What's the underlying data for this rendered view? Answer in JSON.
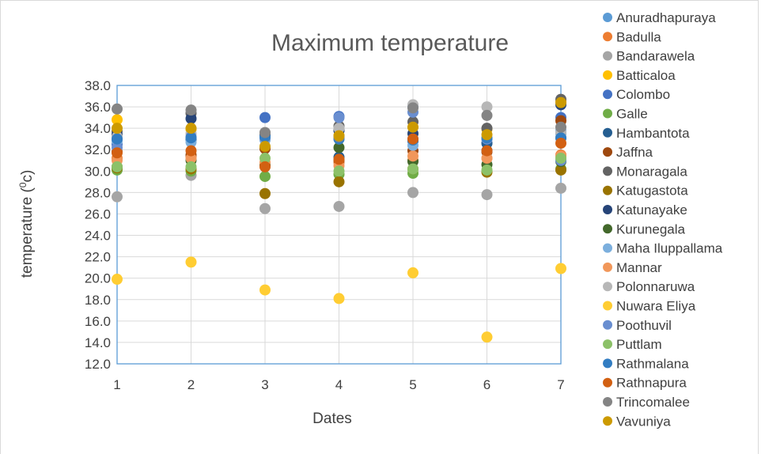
{
  "chart_data": {
    "type": "scatter",
    "title": "Maximum  temperature",
    "xlabel": "Dates",
    "ylabel_main": "temperature (",
    "ylabel_sup": "0",
    "ylabel_end": "c)",
    "xlim": [
      1,
      7
    ],
    "ylim": [
      12.0,
      38.0
    ],
    "x_ticks": [
      "1",
      "2",
      "3",
      "4",
      "5",
      "6",
      "7"
    ],
    "y_ticks": [
      "12.0",
      "14.0",
      "16.0",
      "18.0",
      "20.0",
      "22.0",
      "24.0",
      "26.0",
      "28.0",
      "30.0",
      "32.0",
      "34.0",
      "36.0",
      "38.0"
    ],
    "grid": true,
    "legend_position": "right",
    "series": [
      {
        "name": "Anuradhapuraya",
        "color": "#5B9BD5",
        "x": [
          1,
          2,
          3,
          4,
          5,
          6,
          7
        ],
        "y": [
          33.0,
          33.0,
          33.2,
          33.8,
          36.1,
          33.0,
          33.5
        ]
      },
      {
        "name": "Badulla",
        "color": "#ED7D31",
        "x": [
          1,
          2,
          3,
          4,
          5,
          6,
          7
        ],
        "y": [
          31.2,
          31.3,
          30.5,
          30.8,
          31.0,
          31.2,
          31.5
        ]
      },
      {
        "name": "Bandarawela",
        "color": "#A5A5A5",
        "x": [
          1,
          2,
          3,
          4,
          5,
          6,
          7
        ],
        "y": [
          27.6,
          29.6,
          26.5,
          26.7,
          28.0,
          27.8,
          28.4
        ]
      },
      {
        "name": "Batticaloa",
        "color": "#FFC000",
        "x": [
          1,
          2,
          3,
          4,
          5,
          6,
          7
        ],
        "y": [
          34.8,
          33.9,
          32.2,
          33.3,
          34.1,
          33.9,
          36.5
        ]
      },
      {
        "name": "Colombo",
        "color": "#4472C4",
        "x": [
          1,
          2,
          3,
          4,
          5,
          6,
          7
        ],
        "y": [
          32.5,
          33.0,
          35.0,
          35.1,
          33.0,
          32.6,
          35.0
        ]
      },
      {
        "name": "Galle",
        "color": "#70AD47",
        "x": [
          1,
          2,
          3,
          4,
          5,
          6,
          7
        ],
        "y": [
          30.1,
          30.0,
          29.5,
          29.7,
          29.8,
          30.0,
          30.2
        ]
      },
      {
        "name": "Hambantota",
        "color": "#255E91",
        "x": [
          1,
          2,
          3,
          4,
          5,
          6,
          7
        ],
        "y": [
          32.9,
          33.0,
          33.1,
          31.3,
          32.8,
          32.6,
          33.1
        ]
      },
      {
        "name": "Jaffna",
        "color": "#9E480E",
        "x": [
          1,
          2,
          3,
          4,
          5,
          6,
          7
        ],
        "y": [
          31.8,
          31.5,
          32.1,
          31.0,
          31.9,
          31.8,
          34.7
        ]
      },
      {
        "name": "Monaragala",
        "color": "#636363",
        "x": [
          1,
          2,
          3,
          4,
          5,
          6,
          7
        ],
        "y": [
          33.7,
          35.4,
          33.4,
          34.2,
          34.6,
          34.0,
          36.7
        ]
      },
      {
        "name": "Katugastota",
        "color": "#997300",
        "x": [
          1,
          2,
          3,
          4,
          5,
          6,
          7
        ],
        "y": [
          30.3,
          30.2,
          27.9,
          29.0,
          30.2,
          29.9,
          30.1
        ]
      },
      {
        "name": "Katunayake",
        "color": "#264478",
        "x": [
          1,
          2,
          3,
          4,
          5,
          6,
          7
        ],
        "y": [
          33.4,
          34.9,
          33.3,
          33.8,
          33.5,
          31.9,
          36.2
        ]
      },
      {
        "name": "Kurunegala",
        "color": "#43682B",
        "x": [
          1,
          2,
          3,
          4,
          5,
          6,
          7
        ],
        "y": [
          30.4,
          31.0,
          30.6,
          32.2,
          30.9,
          30.6,
          30.9
        ]
      },
      {
        "name": "Maha Iluppallama",
        "color": "#7CAFDD",
        "x": [
          1,
          2,
          3,
          4,
          5,
          6,
          7
        ],
        "y": [
          32.8,
          32.7,
          32.9,
          33.0,
          32.4,
          33.0,
          33.8
        ]
      },
      {
        "name": "Mannar",
        "color": "#F1975A",
        "x": [
          1,
          2,
          3,
          4,
          5,
          6,
          7
        ],
        "y": [
          31.0,
          31.2,
          30.8,
          30.5,
          31.4,
          31.2,
          31.4
        ]
      },
      {
        "name": "Polonnaruwa",
        "color": "#B7B7B7",
        "x": [
          1,
          2,
          3,
          4,
          5,
          6,
          7
        ],
        "y": [
          33.2,
          33.5,
          33.6,
          34.0,
          36.2,
          36.0,
          33.6
        ]
      },
      {
        "name": "Nuwara Eliya",
        "color": "#FFCD33",
        "x": [
          1,
          2,
          3,
          4,
          5,
          6,
          7
        ],
        "y": [
          19.9,
          21.5,
          18.9,
          18.1,
          20.5,
          14.5,
          20.9
        ]
      },
      {
        "name": "Poothuvil",
        "color": "#698ED0",
        "x": [
          1,
          2,
          3,
          4,
          5,
          6,
          7
        ],
        "y": [
          32.2,
          33.2,
          33.1,
          35.0,
          35.5,
          33.0,
          31.0
        ]
      },
      {
        "name": "Puttlam",
        "color": "#8CC168",
        "x": [
          1,
          2,
          3,
          4,
          5,
          6,
          7
        ],
        "y": [
          30.4,
          30.4,
          31.2,
          30.0,
          30.2,
          30.1,
          31.2
        ]
      },
      {
        "name": "Rathmalana",
        "color": "#327DC2",
        "x": [
          1,
          2,
          3,
          4,
          5,
          6,
          7
        ],
        "y": [
          33.0,
          33.1,
          33.2,
          33.0,
          32.9,
          33.1,
          33.1
        ]
      },
      {
        "name": "Rathnapura",
        "color": "#D26012",
        "x": [
          1,
          2,
          3,
          4,
          5,
          6,
          7
        ],
        "y": [
          31.7,
          31.9,
          30.4,
          31.1,
          33.0,
          31.9,
          32.6
        ]
      },
      {
        "name": "Trincomalee",
        "color": "#848484",
        "x": [
          1,
          2,
          3,
          4,
          5,
          6,
          7
        ],
        "y": [
          35.8,
          35.7,
          33.6,
          33.2,
          35.9,
          35.2,
          34.1
        ]
      },
      {
        "name": "Vavuniya",
        "color": "#CC9A00",
        "x": [
          1,
          2,
          3,
          4,
          5,
          6,
          7
        ],
        "y": [
          34.0,
          34.0,
          32.3,
          33.3,
          34.1,
          33.4,
          36.4
        ]
      }
    ]
  }
}
